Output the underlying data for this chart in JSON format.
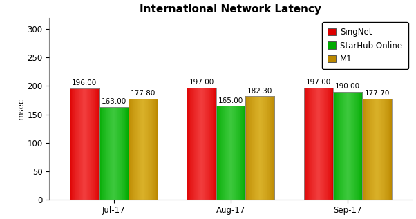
{
  "title": "International Network Latency",
  "ylabel": "msec",
  "categories": [
    "Jul-17",
    "Aug-17",
    "Sep-17"
  ],
  "series": [
    {
      "name": "SingNet",
      "color": "#dd0000",
      "light_color": "#ff6666",
      "values": [
        196.0,
        197.0,
        197.0
      ]
    },
    {
      "name": "StarHub Online",
      "color": "#00aa00",
      "light_color": "#66dd66",
      "values": [
        163.0,
        165.0,
        190.0
      ]
    },
    {
      "name": "M1",
      "color": "#bb8800",
      "light_color": "#eecc44",
      "values": [
        177.8,
        182.3,
        177.7
      ]
    }
  ],
  "ylim": [
    0,
    320
  ],
  "yticks": [
    0,
    50,
    100,
    150,
    200,
    250,
    300
  ],
  "bar_width": 0.25,
  "title_fontsize": 11,
  "label_fontsize": 8.5,
  "tick_fontsize": 8.5,
  "legend_fontsize": 8.5,
  "edge_color": "#888888",
  "background_color": "#ffffff",
  "plot_bg_color": "#ffffff",
  "annotation_fontsize": 7.5,
  "fig_width": 6.02,
  "fig_height": 3.17,
  "fig_dpi": 100
}
